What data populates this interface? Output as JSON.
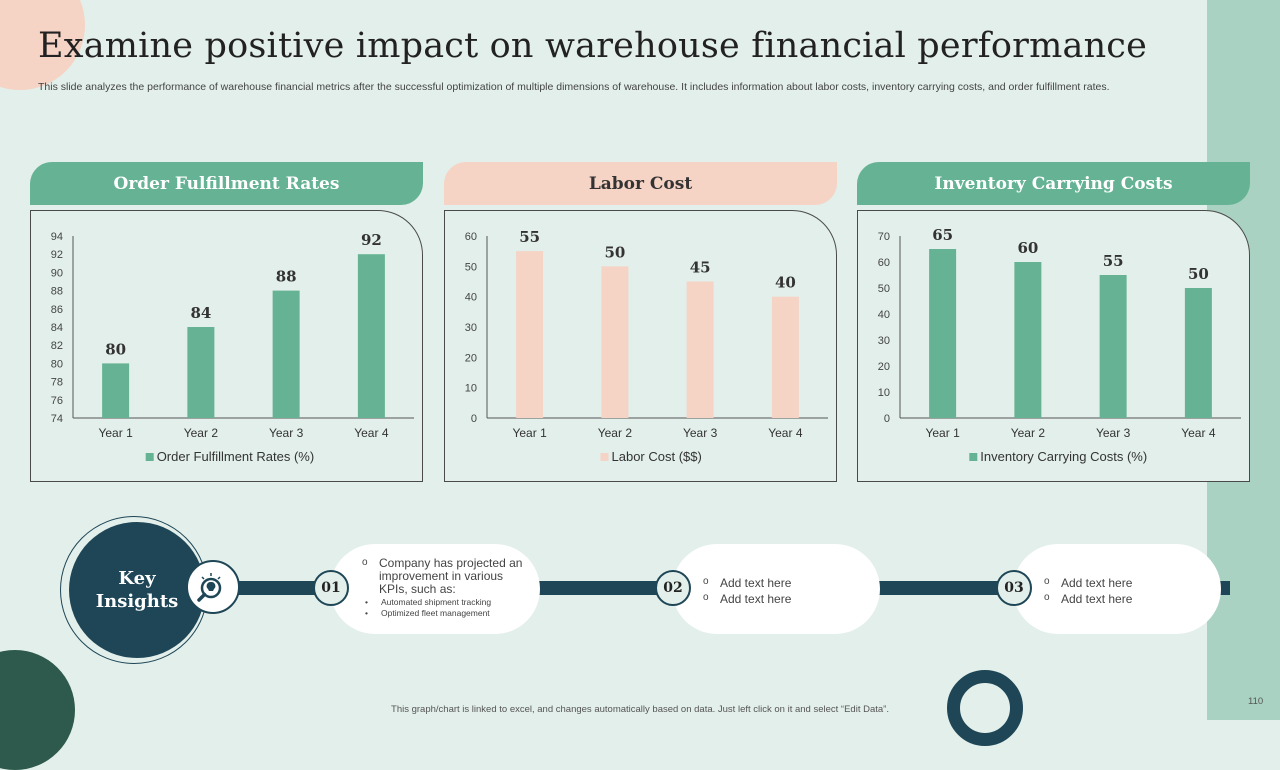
{
  "title": "Examine positive impact on warehouse financial performance",
  "subtitle": "This slide analyzes the performance of warehouse financial metrics after the successful optimization of multiple dimensions of warehouse. It includes information about labor costs, inventory carrying costs, and order fulfillment rates.",
  "colors": {
    "green": "#65b394",
    "peach": "#f5d3c5",
    "navy": "#1e4657",
    "background": "#e3efea"
  },
  "chart_data": [
    {
      "type": "bar",
      "title": "Order Fulfillment Rates",
      "categories": [
        "Year 1",
        "Year 2",
        "Year 3",
        "Year 4"
      ],
      "series": [
        {
          "name": "Order Fulfillment Rates (%)",
          "values": [
            80,
            84,
            88,
            92
          ]
        }
      ],
      "ylim": [
        74,
        94
      ],
      "yticks": [
        74,
        76,
        78,
        80,
        82,
        84,
        86,
        88,
        90,
        92,
        94
      ],
      "color": "#65b394",
      "legend": "bottom"
    },
    {
      "type": "bar",
      "title": "Labor Cost",
      "categories": [
        "Year 1",
        "Year 2",
        "Year 3",
        "Year 4"
      ],
      "series": [
        {
          "name": "Labor Cost ($$)",
          "values": [
            55,
            50,
            45,
            40
          ]
        }
      ],
      "ylim": [
        0,
        60
      ],
      "yticks": [
        0,
        10,
        20,
        30,
        40,
        50,
        60
      ],
      "color": "#f5d3c5",
      "legend": "bottom"
    },
    {
      "type": "bar",
      "title": "Inventory Carrying Costs",
      "categories": [
        "Year 1",
        "Year 2",
        "Year 3",
        "Year 4"
      ],
      "series": [
        {
          "name": "Inventory Carrying Costs (%)",
          "values": [
            65,
            60,
            55,
            50
          ]
        }
      ],
      "ylim": [
        0,
        70
      ],
      "yticks": [
        0,
        10,
        20,
        30,
        40,
        50,
        60,
        70
      ],
      "color": "#65b394",
      "legend": "bottom"
    }
  ],
  "insights": {
    "heading_line1": "Key",
    "heading_line2": "Insights",
    "icon": "lightbulb-magnifier-icon",
    "steps": [
      {
        "number": "01",
        "text": "Company has projected an improvement in various KPIs, such as:",
        "subitems": [
          "Automated shipment tracking",
          "Optimized fleet management"
        ]
      },
      {
        "number": "02",
        "items": [
          "Add text here",
          "Add text here"
        ]
      },
      {
        "number": "03",
        "items": [
          "Add text here",
          "Add text here"
        ]
      }
    ]
  },
  "footer": "This graph/chart is linked to excel, and changes automatically based on data. Just left click on it and select “Edit Data”.",
  "page_number": "110"
}
